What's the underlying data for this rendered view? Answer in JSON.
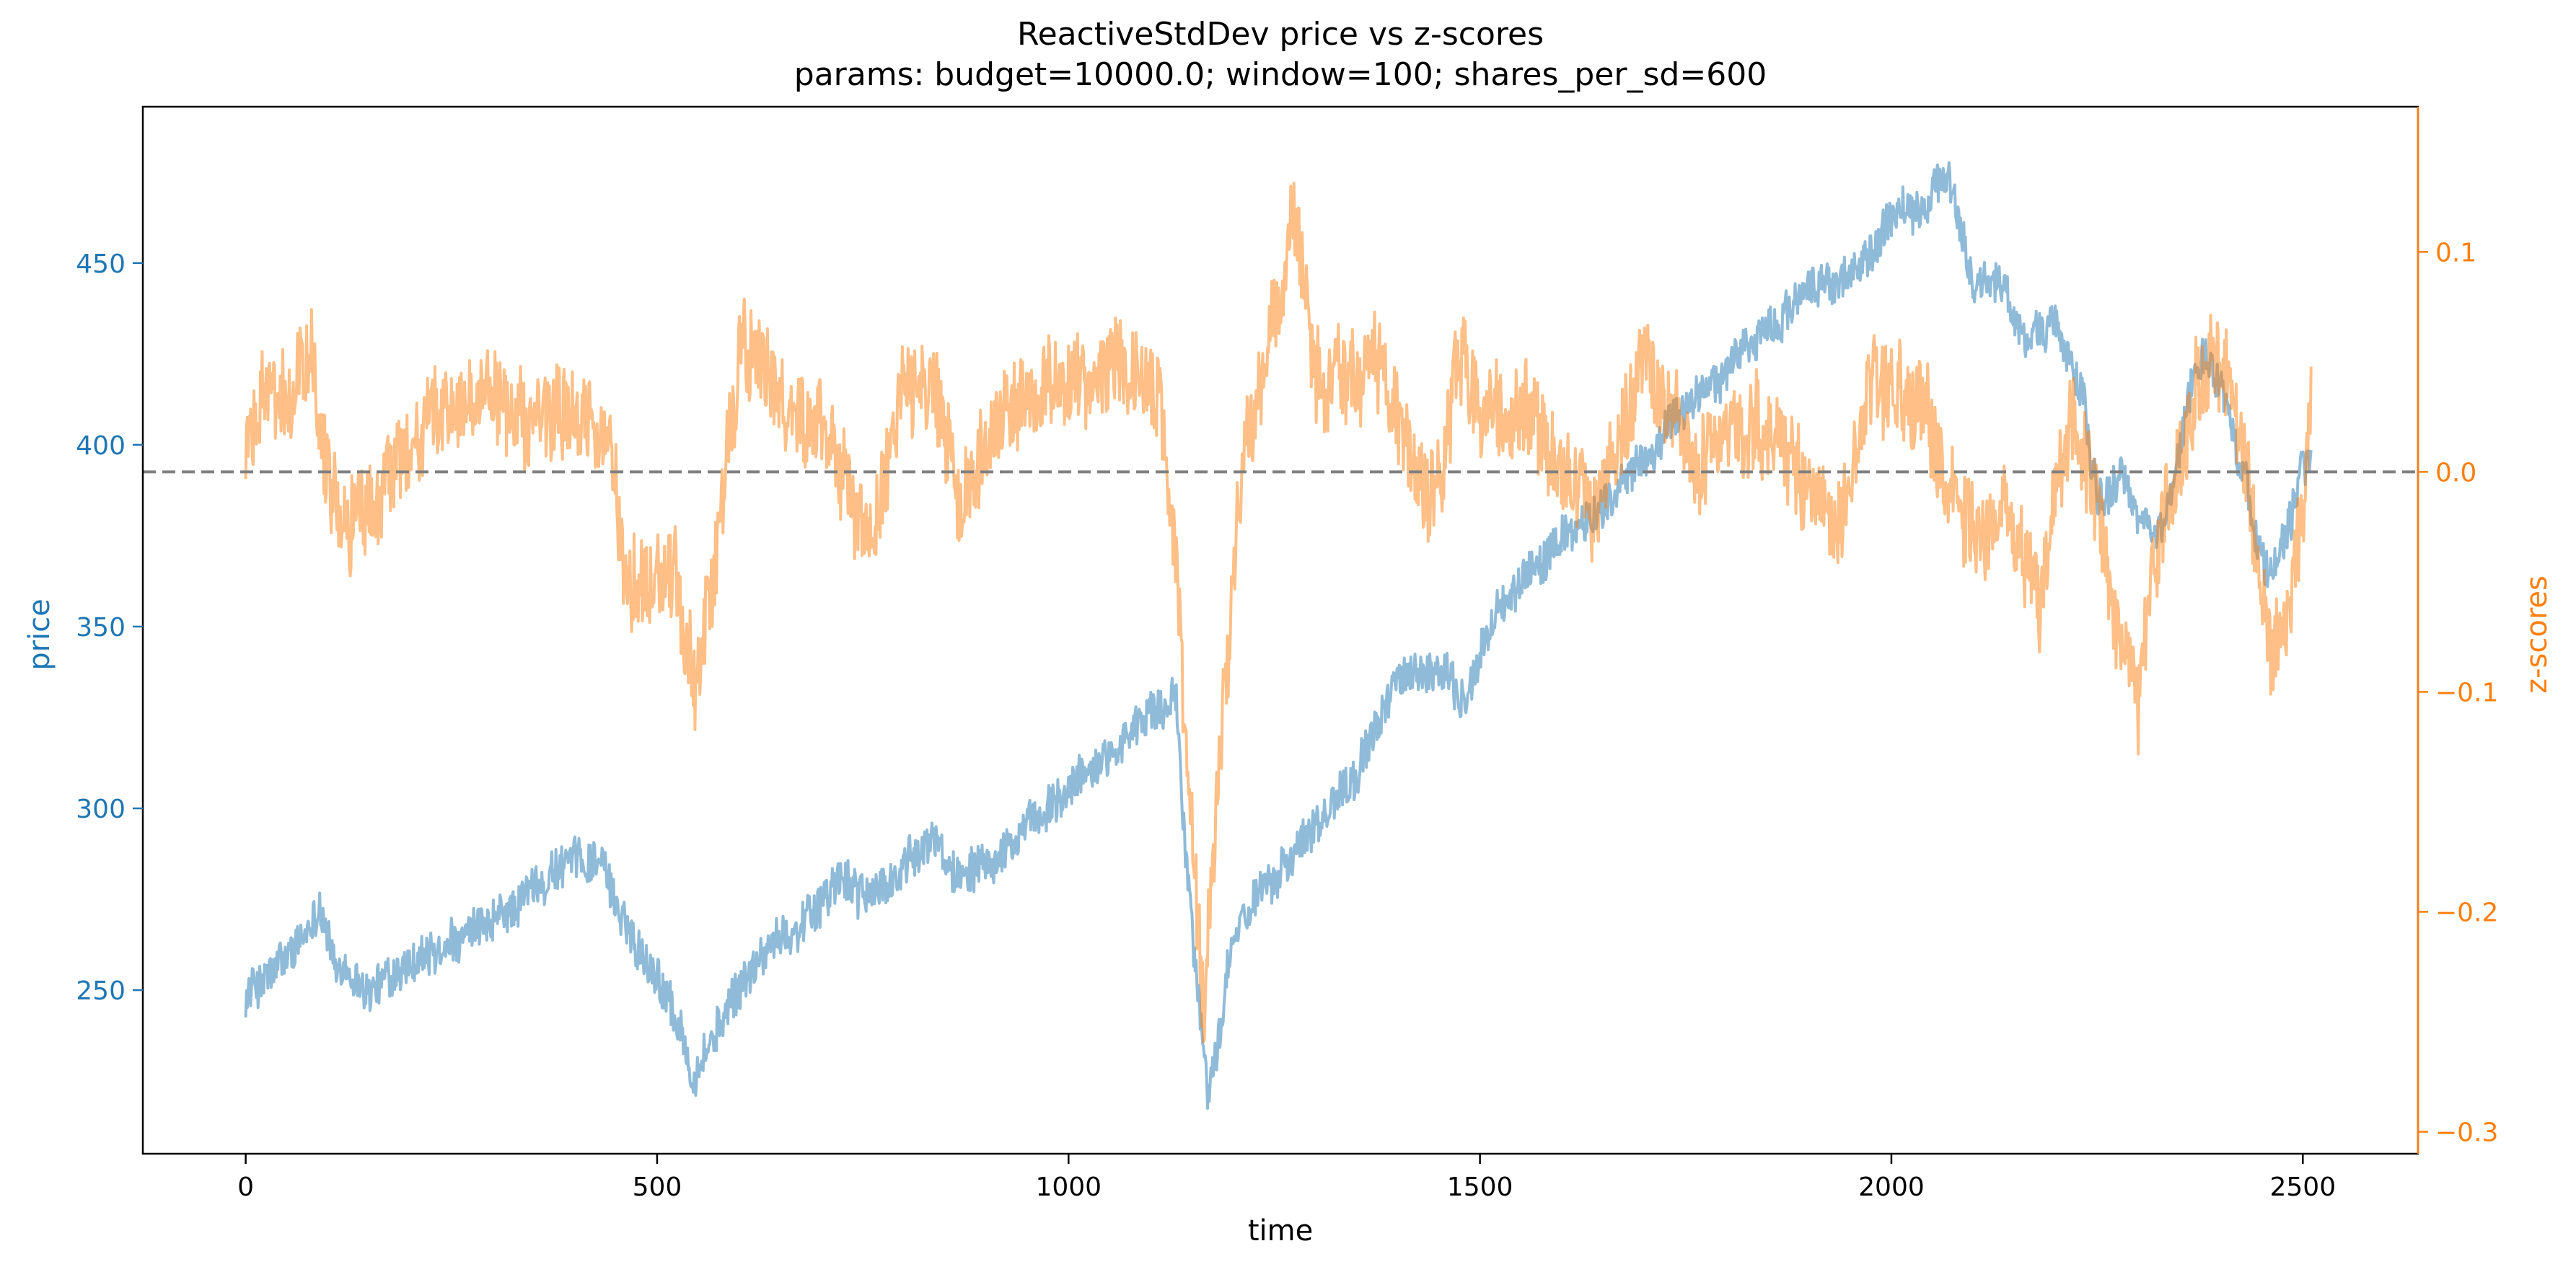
{
  "chart_data": {
    "type": "line",
    "title": "ReactiveStdDev price vs z-scores",
    "subtitle": "params: budget=10000.0; window=100; shares_per_sd=600",
    "xlabel": "time",
    "ylabel_left": "price",
    "ylabel_right": "z-scores",
    "xlim": [
      -125,
      2640
    ],
    "ylim_left": [
      205,
      493
    ],
    "ylim_right": [
      -0.31,
      0.166
    ],
    "x_ticks": [
      0,
      500,
      1000,
      1500,
      2000,
      2500
    ],
    "y_ticks_left": [
      250,
      300,
      350,
      400,
      450
    ],
    "y_ticks_right": [
      -0.3,
      -0.2,
      -0.1,
      0.0,
      0.1
    ],
    "y_tick_labels_right": [
      "−0.3",
      "−0.2",
      "−0.1",
      "0.0",
      "0.1"
    ],
    "zero_line": {
      "value": 0.0,
      "axis": "right",
      "style": "dashed"
    },
    "grid": false,
    "colors": {
      "price": "#1f77b4",
      "zscore": "#ff7f0e",
      "zero_line": "#808080",
      "axes": "#000000"
    },
    "series": [
      {
        "axis": "left",
        "x": [
          0,
          30,
          70,
          90,
          110,
          150,
          190,
          250,
          300,
          340,
          380,
          430,
          460,
          500,
          520,
          545,
          570,
          620,
          680,
          720,
          760,
          800,
          840,
          860,
          880,
          930,
          980,
          1050,
          1100,
          1130,
          1145,
          1160,
          1170,
          1185,
          1200,
          1230,
          1280,
          1320,
          1370,
          1400,
          1430,
          1460,
          1480,
          1520,
          1570,
          1620,
          1680,
          1730,
          1780,
          1830,
          1880,
          1920,
          1960,
          2000,
          2040,
          2070,
          2100,
          2130,
          2160,
          2200,
          2230,
          2250,
          2280,
          2300,
          2330,
          2360,
          2380,
          2400,
          2420,
          2440,
          2460,
          2480,
          2500,
          2510
        ],
        "values": [
          249,
          254,
          263,
          275,
          255,
          250,
          255,
          262,
          268,
          276,
          284,
          287,
          268,
          255,
          245,
          226,
          238,
          258,
          270,
          280,
          276,
          283,
          292,
          282,
          285,
          290,
          300,
          316,
          326,
          330,
          280,
          245,
          222,
          240,
          262,
          278,
          290,
          302,
          318,
          338,
          335,
          338,
          328,
          355,
          367,
          378,
          390,
          405,
          417,
          428,
          438,
          445,
          448,
          462,
          465,
          474,
          445,
          445,
          430,
          433,
          415,
          385,
          390,
          380,
          375,
          412,
          425,
          418,
          398,
          380,
          362,
          378,
          395,
          396
        ],
        "noise": 7
      },
      {
        "axis": "right",
        "x": [
          0,
          20,
          50,
          80,
          100,
          120,
          150,
          180,
          200,
          250,
          290,
          330,
          390,
          440,
          460,
          480,
          520,
          545,
          570,
          600,
          620,
          650,
          700,
          740,
          760,
          800,
          840,
          870,
          900,
          940,
          980,
          1030,
          1080,
          1110,
          1130,
          1150,
          1165,
          1180,
          1210,
          1240,
          1275,
          1300,
          1340,
          1380,
          1400,
          1420,
          1440,
          1470,
          1500,
          1550,
          1590,
          1620,
          1640,
          1670,
          1700,
          1730,
          1760,
          1790,
          1830,
          1870,
          1900,
          1930,
          1970,
          2010,
          2060,
          2100,
          2140,
          2180,
          2220,
          2250,
          2270,
          2300,
          2320,
          2340,
          2370,
          2390,
          2410,
          2440,
          2460,
          2480,
          2500,
          2510
        ],
        "values": [
          0.01,
          0.035,
          0.03,
          0.06,
          0.0,
          -0.02,
          -0.02,
          0.0,
          0.01,
          0.03,
          0.03,
          0.025,
          0.025,
          0.015,
          -0.04,
          -0.06,
          -0.045,
          -0.1,
          -0.04,
          0.06,
          0.05,
          0.03,
          0.02,
          -0.01,
          -0.03,
          0.035,
          0.03,
          -0.02,
          0.02,
          0.03,
          0.04,
          0.045,
          0.045,
          0.03,
          -0.03,
          -0.17,
          -0.25,
          -0.15,
          0.0,
          0.05,
          0.12,
          0.04,
          0.04,
          0.05,
          0.02,
          0.0,
          -0.02,
          0.04,
          0.03,
          0.03,
          0.01,
          0.0,
          -0.02,
          0.02,
          0.05,
          0.03,
          0.0,
          0.01,
          0.02,
          0.01,
          0.0,
          -0.03,
          0.035,
          0.04,
          0.01,
          -0.03,
          -0.02,
          -0.06,
          0.03,
          -0.01,
          -0.07,
          -0.1,
          -0.04,
          0.0,
          0.04,
          0.05,
          0.04,
          -0.02,
          -0.08,
          -0.07,
          -0.02,
          0.04
        ],
        "noise": 0.025
      }
    ]
  }
}
